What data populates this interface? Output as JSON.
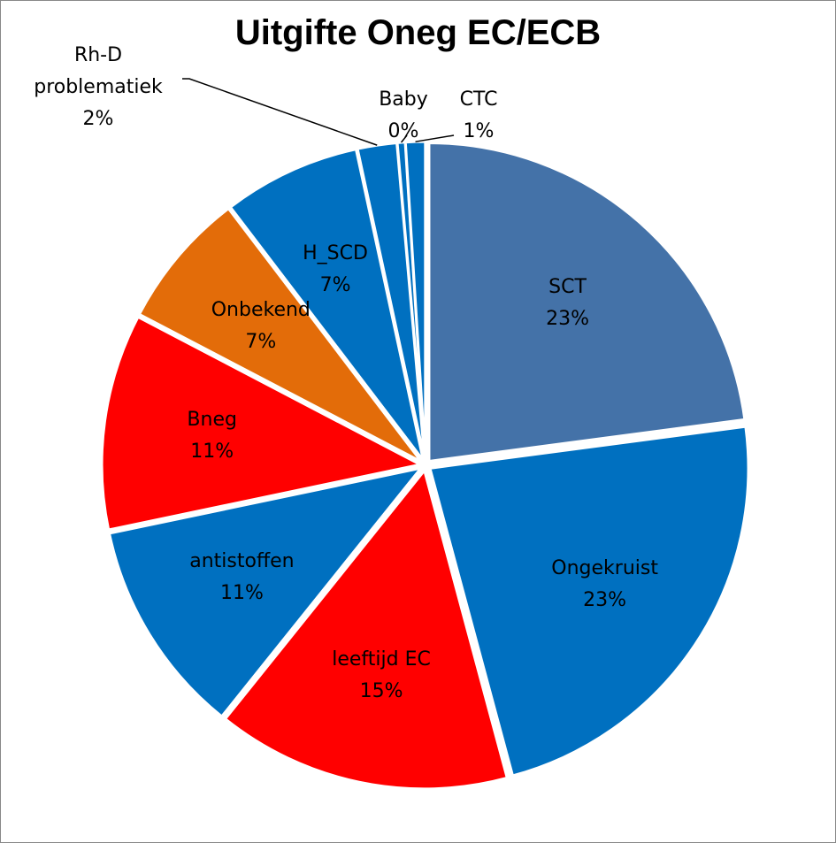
{
  "chart_data": {
    "type": "pie",
    "title": "Uitgifte Oneg EC/ECB",
    "categories": [
      "SCT",
      "Ongekruist",
      "leeftijd EC",
      "antistoffen",
      "Bneg",
      "Onbekend",
      "H_SCD",
      "Rh-D problematiek",
      "Baby",
      "CTC"
    ],
    "values": [
      23,
      23,
      15,
      11,
      11,
      7,
      7,
      2,
      0.4,
      1
    ],
    "value_labels": [
      "23%",
      "23%",
      "15%",
      "11%",
      "11%",
      "7%",
      "7%",
      "2%",
      "0%",
      "1%"
    ],
    "colors": [
      "#4472a8",
      "#0070c0",
      "#ff0000",
      "#0070c0",
      "#ff0000",
      "#e36c09",
      "#0070c0",
      "#0070c0",
      "#0070c0",
      "#0070c0"
    ]
  }
}
